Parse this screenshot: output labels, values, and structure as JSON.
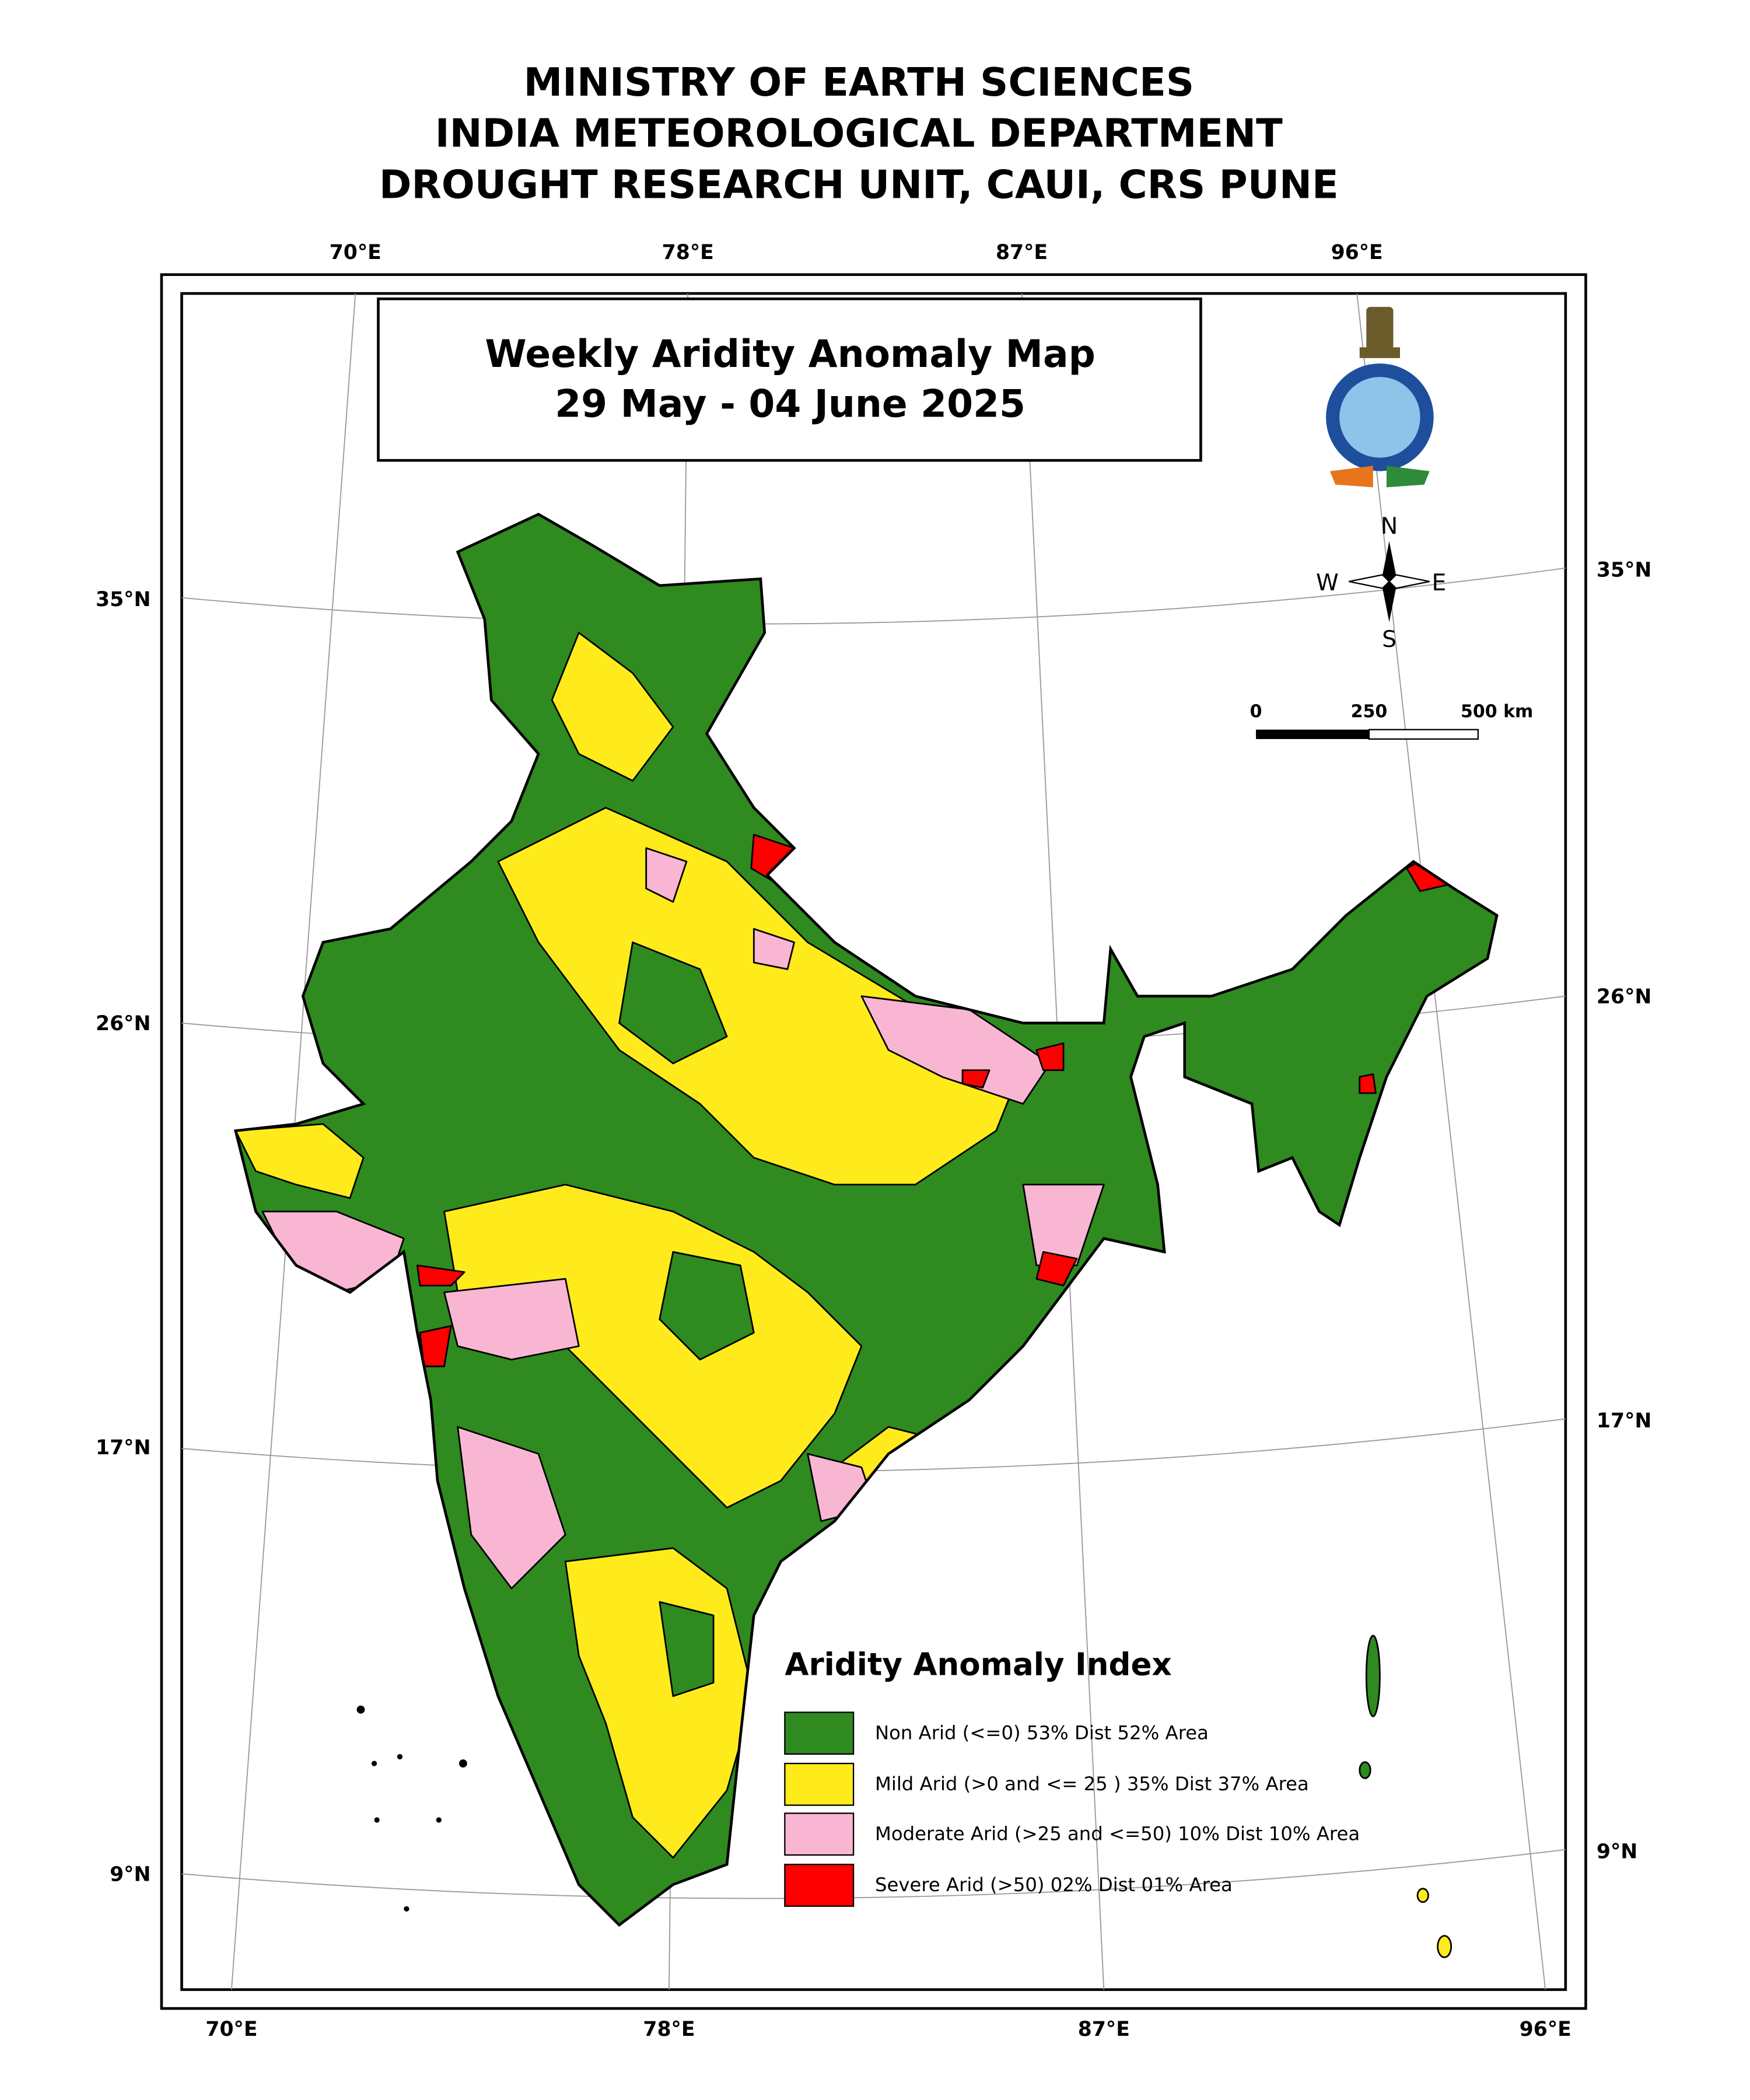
{
  "header": {
    "lines": [
      "MINISTRY OF EARTH SCIENCES",
      "INDIA METEOROLOGICAL DEPARTMENT",
      "DROUGHT RESEARCH UNIT, CAUI, CRS PUNE"
    ]
  },
  "map": {
    "title": "Weekly Aridity Anomaly Map",
    "period": "29 May - 04 June 2025",
    "top_lon_labels": [
      "70°E",
      "78°E",
      "87°E",
      "96°E"
    ],
    "bottom_lon_labels": [
      "70°E",
      "78°E",
      "87°E",
      "96°E"
    ],
    "left_lat_labels": [
      "35°N",
      "26°N",
      "17°N",
      "9°N"
    ],
    "right_lat_labels": [
      "35°N",
      "26°N",
      "17°N",
      "9°N"
    ],
    "compass": {
      "north": "N",
      "south": "S",
      "east": "E",
      "west": "W"
    },
    "scale_bar": [
      "0",
      "250",
      "500 km"
    ]
  },
  "legend": {
    "title": "Aridity Anomaly Index",
    "items": [
      {
        "label": "Non Arid (<=0) 53% Dist 52% Area",
        "color": "#2f8a1f"
      },
      {
        "label": "Mild Arid (>0 and <= 25 ) 35% Dist 37% Area",
        "color": "#ffeb1c"
      },
      {
        "label": "Moderate Arid (>25 and <=50) 10% Dist 10% Area",
        "color": "#f9b6d2"
      },
      {
        "label": "Severe Arid (>50) 02% Dist 01% Area",
        "color": "#ff0000"
      }
    ]
  }
}
